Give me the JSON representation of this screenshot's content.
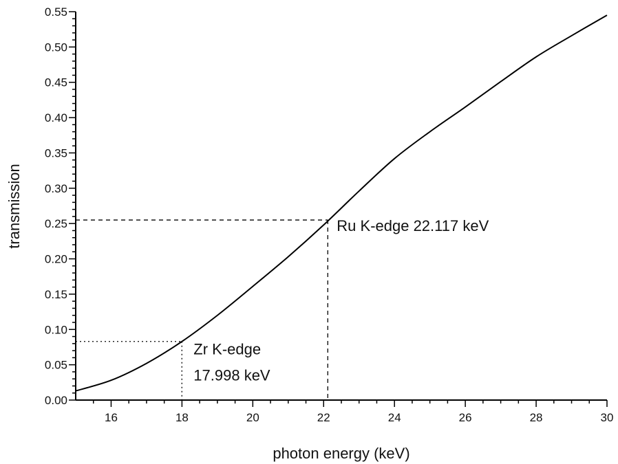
{
  "chart_data": {
    "type": "line",
    "title": "",
    "xlabel": "photon energy (keV)",
    "ylabel": "transmission",
    "xlim": [
      15,
      30
    ],
    "ylim": [
      0,
      0.55
    ],
    "grid": false,
    "x_ticks": [
      "16",
      "18",
      "20",
      "22",
      "24",
      "26",
      "28",
      "30"
    ],
    "y_ticks": [
      "0.00",
      "0.05",
      "0.10",
      "0.15",
      "0.20",
      "0.25",
      "0.30",
      "0.35",
      "0.40",
      "0.45",
      "0.50",
      "0.55"
    ],
    "series": [
      {
        "name": "transmission",
        "color": "#000000",
        "x": [
          15,
          16,
          17,
          18,
          19,
          20,
          21,
          22,
          23,
          24,
          25,
          26,
          27,
          28,
          29,
          30
        ],
        "y": [
          0.013,
          0.028,
          0.052,
          0.083,
          0.12,
          0.161,
          0.203,
          0.248,
          0.296,
          0.342,
          0.38,
          0.415,
          0.451,
          0.486,
          0.516,
          0.545
        ]
      }
    ],
    "annotations": [
      {
        "id": "zr",
        "lines": [
          "Zr K-edge",
          "17.998 keV"
        ],
        "x": 17.998,
        "y": 0.083,
        "style": "dotted"
      },
      {
        "id": "ru",
        "lines": [
          "Ru K-edge 22.117 keV"
        ],
        "x": 22.117,
        "y": 0.255,
        "style": "dashed"
      }
    ]
  }
}
